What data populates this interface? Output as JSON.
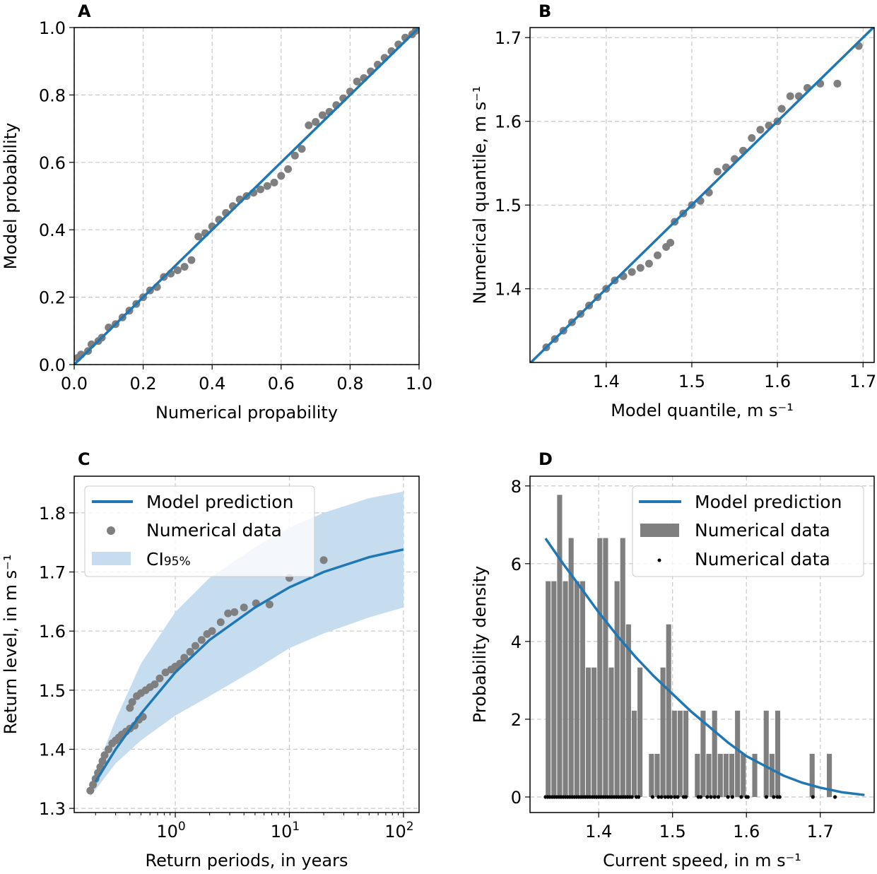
{
  "chart_data": [
    {
      "panel": "A",
      "type": "scatter",
      "xlabel": "Numerical propability",
      "ylabel": "Model probability",
      "xlim": [
        0,
        1
      ],
      "ylim": [
        0,
        1
      ],
      "xticks": [
        0,
        0.2,
        0.4,
        0.6,
        0.8,
        1.0
      ],
      "yticks": [
        0,
        0.2,
        0.4,
        0.6,
        0.8,
        1.0
      ],
      "tick_decimals": 1,
      "line": [
        [
          0,
          0
        ],
        [
          1,
          1
        ]
      ],
      "points": [
        [
          0.01,
          0.02
        ],
        [
          0.02,
          0.03
        ],
        [
          0.04,
          0.04
        ],
        [
          0.05,
          0.06
        ],
        [
          0.07,
          0.07
        ],
        [
          0.08,
          0.08
        ],
        [
          0.1,
          0.11
        ],
        [
          0.12,
          0.12
        ],
        [
          0.14,
          0.14
        ],
        [
          0.16,
          0.16
        ],
        [
          0.18,
          0.18
        ],
        [
          0.2,
          0.2
        ],
        [
          0.22,
          0.22
        ],
        [
          0.24,
          0.23
        ],
        [
          0.26,
          0.26
        ],
        [
          0.28,
          0.27
        ],
        [
          0.3,
          0.28
        ],
        [
          0.32,
          0.29
        ],
        [
          0.34,
          0.31
        ],
        [
          0.36,
          0.38
        ],
        [
          0.38,
          0.39
        ],
        [
          0.4,
          0.41
        ],
        [
          0.42,
          0.43
        ],
        [
          0.44,
          0.45
        ],
        [
          0.46,
          0.47
        ],
        [
          0.48,
          0.49
        ],
        [
          0.5,
          0.5
        ],
        [
          0.52,
          0.51
        ],
        [
          0.54,
          0.52
        ],
        [
          0.56,
          0.53
        ],
        [
          0.58,
          0.54
        ],
        [
          0.6,
          0.56
        ],
        [
          0.62,
          0.58
        ],
        [
          0.64,
          0.62
        ],
        [
          0.66,
          0.64
        ],
        [
          0.68,
          0.71
        ],
        [
          0.7,
          0.72
        ],
        [
          0.72,
          0.74
        ],
        [
          0.74,
          0.75
        ],
        [
          0.76,
          0.77
        ],
        [
          0.78,
          0.79
        ],
        [
          0.8,
          0.81
        ],
        [
          0.82,
          0.84
        ],
        [
          0.84,
          0.85
        ],
        [
          0.86,
          0.87
        ],
        [
          0.88,
          0.89
        ],
        [
          0.9,
          0.91
        ],
        [
          0.92,
          0.93
        ],
        [
          0.94,
          0.95
        ],
        [
          0.96,
          0.97
        ],
        [
          0.98,
          0.98
        ],
        [
          0.99,
          0.99
        ]
      ]
    },
    {
      "panel": "B",
      "type": "scatter",
      "xlabel": "Model quantile, m s⁻¹",
      "ylabel": "Numerical quantile, m s⁻¹",
      "xlim": [
        1.311,
        1.713
      ],
      "ylim": [
        1.312,
        1.712
      ],
      "xticks": [
        1.4,
        1.5,
        1.6,
        1.7
      ],
      "yticks": [
        1.4,
        1.5,
        1.6,
        1.7
      ],
      "tick_decimals": 1,
      "line": [
        [
          1.311,
          1.311
        ],
        [
          1.713,
          1.713
        ]
      ],
      "points": [
        [
          1.33,
          1.33
        ],
        [
          1.34,
          1.34
        ],
        [
          1.35,
          1.35
        ],
        [
          1.36,
          1.36
        ],
        [
          1.37,
          1.37
        ],
        [
          1.38,
          1.38
        ],
        [
          1.39,
          1.39
        ],
        [
          1.4,
          1.4
        ],
        [
          1.41,
          1.41
        ],
        [
          1.42,
          1.415
        ],
        [
          1.43,
          1.42
        ],
        [
          1.44,
          1.425
        ],
        [
          1.45,
          1.43
        ],
        [
          1.46,
          1.44
        ],
        [
          1.47,
          1.45
        ],
        [
          1.475,
          1.455
        ],
        [
          1.48,
          1.48
        ],
        [
          1.49,
          1.49
        ],
        [
          1.5,
          1.5
        ],
        [
          1.51,
          1.505
        ],
        [
          1.52,
          1.515
        ],
        [
          1.53,
          1.54
        ],
        [
          1.54,
          1.545
        ],
        [
          1.55,
          1.555
        ],
        [
          1.56,
          1.565
        ],
        [
          1.57,
          1.58
        ],
        [
          1.58,
          1.59
        ],
        [
          1.59,
          1.595
        ],
        [
          1.6,
          1.6
        ],
        [
          1.605,
          1.615
        ],
        [
          1.615,
          1.63
        ],
        [
          1.625,
          1.63
        ],
        [
          1.635,
          1.64
        ],
        [
          1.65,
          1.645
        ],
        [
          1.67,
          1.645
        ],
        [
          1.695,
          1.69
        ]
      ]
    },
    {
      "panel": "C",
      "type": "line",
      "xscale": "log",
      "xlabel": "Return periods, in years",
      "ylabel": "Return level, in m s⁻¹",
      "xlim": [
        0.13,
        137
      ],
      "ylim": [
        1.293,
        1.862
      ],
      "xtick_exponents": [
        0,
        1,
        2
      ],
      "yticks": [
        1.3,
        1.4,
        1.5,
        1.6,
        1.7,
        1.8
      ],
      "tick_decimals": 1,
      "model": [
        [
          0.2,
          1.345
        ],
        [
          0.3,
          1.4
        ],
        [
          0.5,
          1.46
        ],
        [
          1,
          1.53
        ],
        [
          2,
          1.585
        ],
        [
          5,
          1.64
        ],
        [
          10,
          1.674
        ],
        [
          20,
          1.7
        ],
        [
          50,
          1.725
        ],
        [
          100,
          1.738
        ]
      ],
      "ci_lower": [
        [
          0.18,
          1.32
        ],
        [
          0.3,
          1.376
        ],
        [
          0.5,
          1.415
        ],
        [
          1,
          1.457
        ],
        [
          2,
          1.49
        ],
        [
          5,
          1.535
        ],
        [
          10,
          1.571
        ],
        [
          20,
          1.596
        ],
        [
          50,
          1.623
        ],
        [
          100,
          1.64
        ]
      ],
      "ci_upper": [
        [
          0.18,
          1.34
        ],
        [
          0.3,
          1.45
        ],
        [
          0.5,
          1.545
        ],
        [
          1,
          1.632
        ],
        [
          2,
          1.69
        ],
        [
          5,
          1.742
        ],
        [
          10,
          1.775
        ],
        [
          20,
          1.8
        ],
        [
          50,
          1.825
        ],
        [
          100,
          1.836
        ]
      ],
      "points": [
        [
          0.18,
          1.33
        ],
        [
          0.19,
          1.34
        ],
        [
          0.2,
          1.35
        ],
        [
          0.21,
          1.36
        ],
        [
          0.22,
          1.37
        ],
        [
          0.23,
          1.38
        ],
        [
          0.24,
          1.39
        ],
        [
          0.26,
          1.4
        ],
        [
          0.28,
          1.41
        ],
        [
          0.3,
          1.415
        ],
        [
          0.32,
          1.42
        ],
        [
          0.34,
          1.425
        ],
        [
          0.37,
          1.43
        ],
        [
          0.4,
          1.435
        ],
        [
          0.44,
          1.44
        ],
        [
          0.48,
          1.45
        ],
        [
          0.52,
          1.455
        ],
        [
          0.4,
          1.47
        ],
        [
          0.42,
          1.48
        ],
        [
          0.46,
          1.49
        ],
        [
          0.5,
          1.495
        ],
        [
          0.55,
          1.5
        ],
        [
          0.6,
          1.505
        ],
        [
          0.66,
          1.51
        ],
        [
          0.73,
          1.52
        ],
        [
          0.82,
          1.53
        ],
        [
          0.92,
          1.535
        ],
        [
          1.0,
          1.54
        ],
        [
          1.1,
          1.545
        ],
        [
          1.2,
          1.555
        ],
        [
          1.35,
          1.565
        ],
        [
          1.5,
          1.575
        ],
        [
          1.7,
          1.585
        ],
        [
          1.9,
          1.595
        ],
        [
          2.1,
          1.6
        ],
        [
          2.5,
          1.615
        ],
        [
          2.9,
          1.63
        ],
        [
          3.3,
          1.632
        ],
        [
          4.0,
          1.64
        ],
        [
          5.1,
          1.647
        ],
        [
          6.7,
          1.645
        ],
        [
          10,
          1.69
        ],
        [
          20,
          1.72
        ]
      ]
    },
    {
      "panel": "D",
      "type": "bar",
      "xlabel": "Current speed, in m s⁻¹",
      "ylabel": "Probability density",
      "xlim": [
        1.307,
        1.773
      ],
      "ylim": [
        -0.4,
        8.25
      ],
      "xticks": [
        1.4,
        1.5,
        1.6,
        1.7
      ],
      "yticks": [
        0,
        2,
        4,
        6,
        8
      ],
      "tick_decimals_x": 1,
      "tick_decimals_y": 0,
      "bin_start": 1.3277,
      "bin_width": 0.00777,
      "density_per_count": 1.11,
      "counts": [
        5,
        5,
        7,
        5,
        6,
        5,
        5,
        3,
        3,
        6,
        6,
        3,
        5,
        6,
        4,
        2,
        3,
        0,
        1,
        1,
        3,
        4,
        2,
        2,
        2,
        0,
        1,
        2,
        1,
        2,
        1,
        1,
        1,
        2,
        1,
        0,
        1,
        0,
        2,
        1,
        2,
        0,
        0,
        0,
        0,
        0,
        1,
        0,
        0,
        1
      ],
      "model": [
        [
          1.328,
          6.65
        ],
        [
          1.35,
          6.05
        ],
        [
          1.375,
          5.4
        ],
        [
          1.4,
          4.75
        ],
        [
          1.425,
          4.15
        ],
        [
          1.45,
          3.6
        ],
        [
          1.475,
          3.1
        ],
        [
          1.5,
          2.65
        ],
        [
          1.525,
          2.2
        ],
        [
          1.55,
          1.8
        ],
        [
          1.575,
          1.4
        ],
        [
          1.6,
          1.05
        ],
        [
          1.625,
          0.8
        ],
        [
          1.65,
          0.55
        ],
        [
          1.675,
          0.37
        ],
        [
          1.7,
          0.24
        ],
        [
          1.73,
          0.12
        ],
        [
          1.76,
          0.05
        ]
      ],
      "rug": [
        1.328,
        1.331,
        1.334,
        1.337,
        1.34,
        1.343,
        1.346,
        1.349,
        1.352,
        1.355,
        1.358,
        1.361,
        1.364,
        1.367,
        1.37,
        1.373,
        1.376,
        1.379,
        1.382,
        1.385,
        1.388,
        1.391,
        1.394,
        1.397,
        1.4,
        1.403,
        1.406,
        1.409,
        1.412,
        1.415,
        1.418,
        1.421,
        1.424,
        1.427,
        1.43,
        1.433,
        1.436,
        1.439,
        1.442,
        1.445,
        1.451,
        1.454,
        1.473,
        1.481,
        1.485,
        1.49,
        1.494,
        1.498,
        1.503,
        1.507,
        1.515,
        1.518,
        1.535,
        1.538,
        1.547,
        1.552,
        1.557,
        1.562,
        1.575,
        1.581,
        1.593,
        1.6,
        1.602,
        1.627,
        1.637,
        1.642,
        1.645,
        1.69,
        1.72
      ]
    }
  ],
  "labels": {
    "A": "A",
    "B": "B",
    "C": "C",
    "D": "D"
  },
  "legend_c": {
    "model": "Model prediction",
    "data": "Numerical data",
    "ci": "CI",
    "ci_sub": "95%"
  },
  "legend_d": {
    "model": "Model prediction",
    "hist": "Numerical data",
    "rug": "Numerical data"
  },
  "colors": {
    "model": "#1f77b4",
    "points": "#7f7f7f",
    "ci": "#c6dcef",
    "rug": "#000000"
  }
}
